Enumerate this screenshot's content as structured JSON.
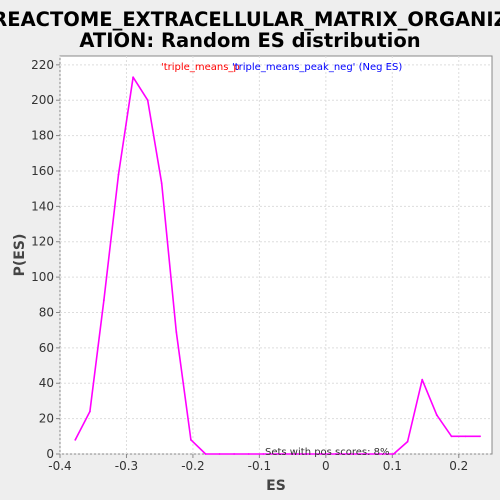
{
  "chart_data": {
    "type": "line",
    "title_line1": "REACTOME_EXTRACELLULAR_MATRIX_ORGANIZ",
    "title_line2": "ATION: Random ES distribution",
    "xlabel": "ES",
    "ylabel": "P(ES)",
    "xlim": [
      -0.4,
      0.25
    ],
    "ylim": [
      0,
      225
    ],
    "xticks": [
      -0.4,
      -0.3,
      -0.2,
      -0.1,
      0.0,
      0.1,
      0.2
    ],
    "xtick_labels": [
      "-0.4",
      "-0.3",
      "-0.2",
      "-0.1",
      "0",
      "0.1",
      "0.2"
    ],
    "yticks": [
      0,
      20,
      40,
      60,
      80,
      100,
      120,
      140,
      160,
      180,
      200,
      220
    ],
    "ytick_labels": [
      "0",
      "20",
      "40",
      "60",
      "80",
      "100",
      "120",
      "140",
      "160",
      "180",
      "200",
      "220"
    ],
    "grid": true,
    "legend": {
      "placement": "top-center",
      "entries": [
        {
          "text": "'triple_means_p",
          "color": "#ff0000"
        },
        {
          "text": "'triple_means_peak_neg' (Neg ES)",
          "color": "#0000ff"
        }
      ]
    },
    "series": [
      {
        "color": "#ff00ff",
        "x": [
          -0.377,
          -0.355,
          -0.334,
          -0.312,
          -0.29,
          -0.268,
          -0.247,
          -0.225,
          -0.203,
          -0.181,
          -0.16,
          -0.138,
          -0.116,
          -0.094,
          -0.072,
          -0.051,
          -0.029,
          -0.007,
          0.015,
          0.036,
          0.058,
          0.08,
          0.102,
          0.123,
          0.145,
          0.167,
          0.189,
          0.21,
          0.232
        ],
        "y": [
          8,
          24,
          87,
          158,
          213,
          200,
          153,
          69,
          8,
          0,
          0,
          0,
          0,
          0,
          0,
          0,
          0,
          0,
          0,
          0,
          0,
          0,
          0,
          7,
          42,
          22,
          10,
          10,
          10
        ]
      }
    ],
    "annotation": "Sets with pos scores: 8%"
  }
}
